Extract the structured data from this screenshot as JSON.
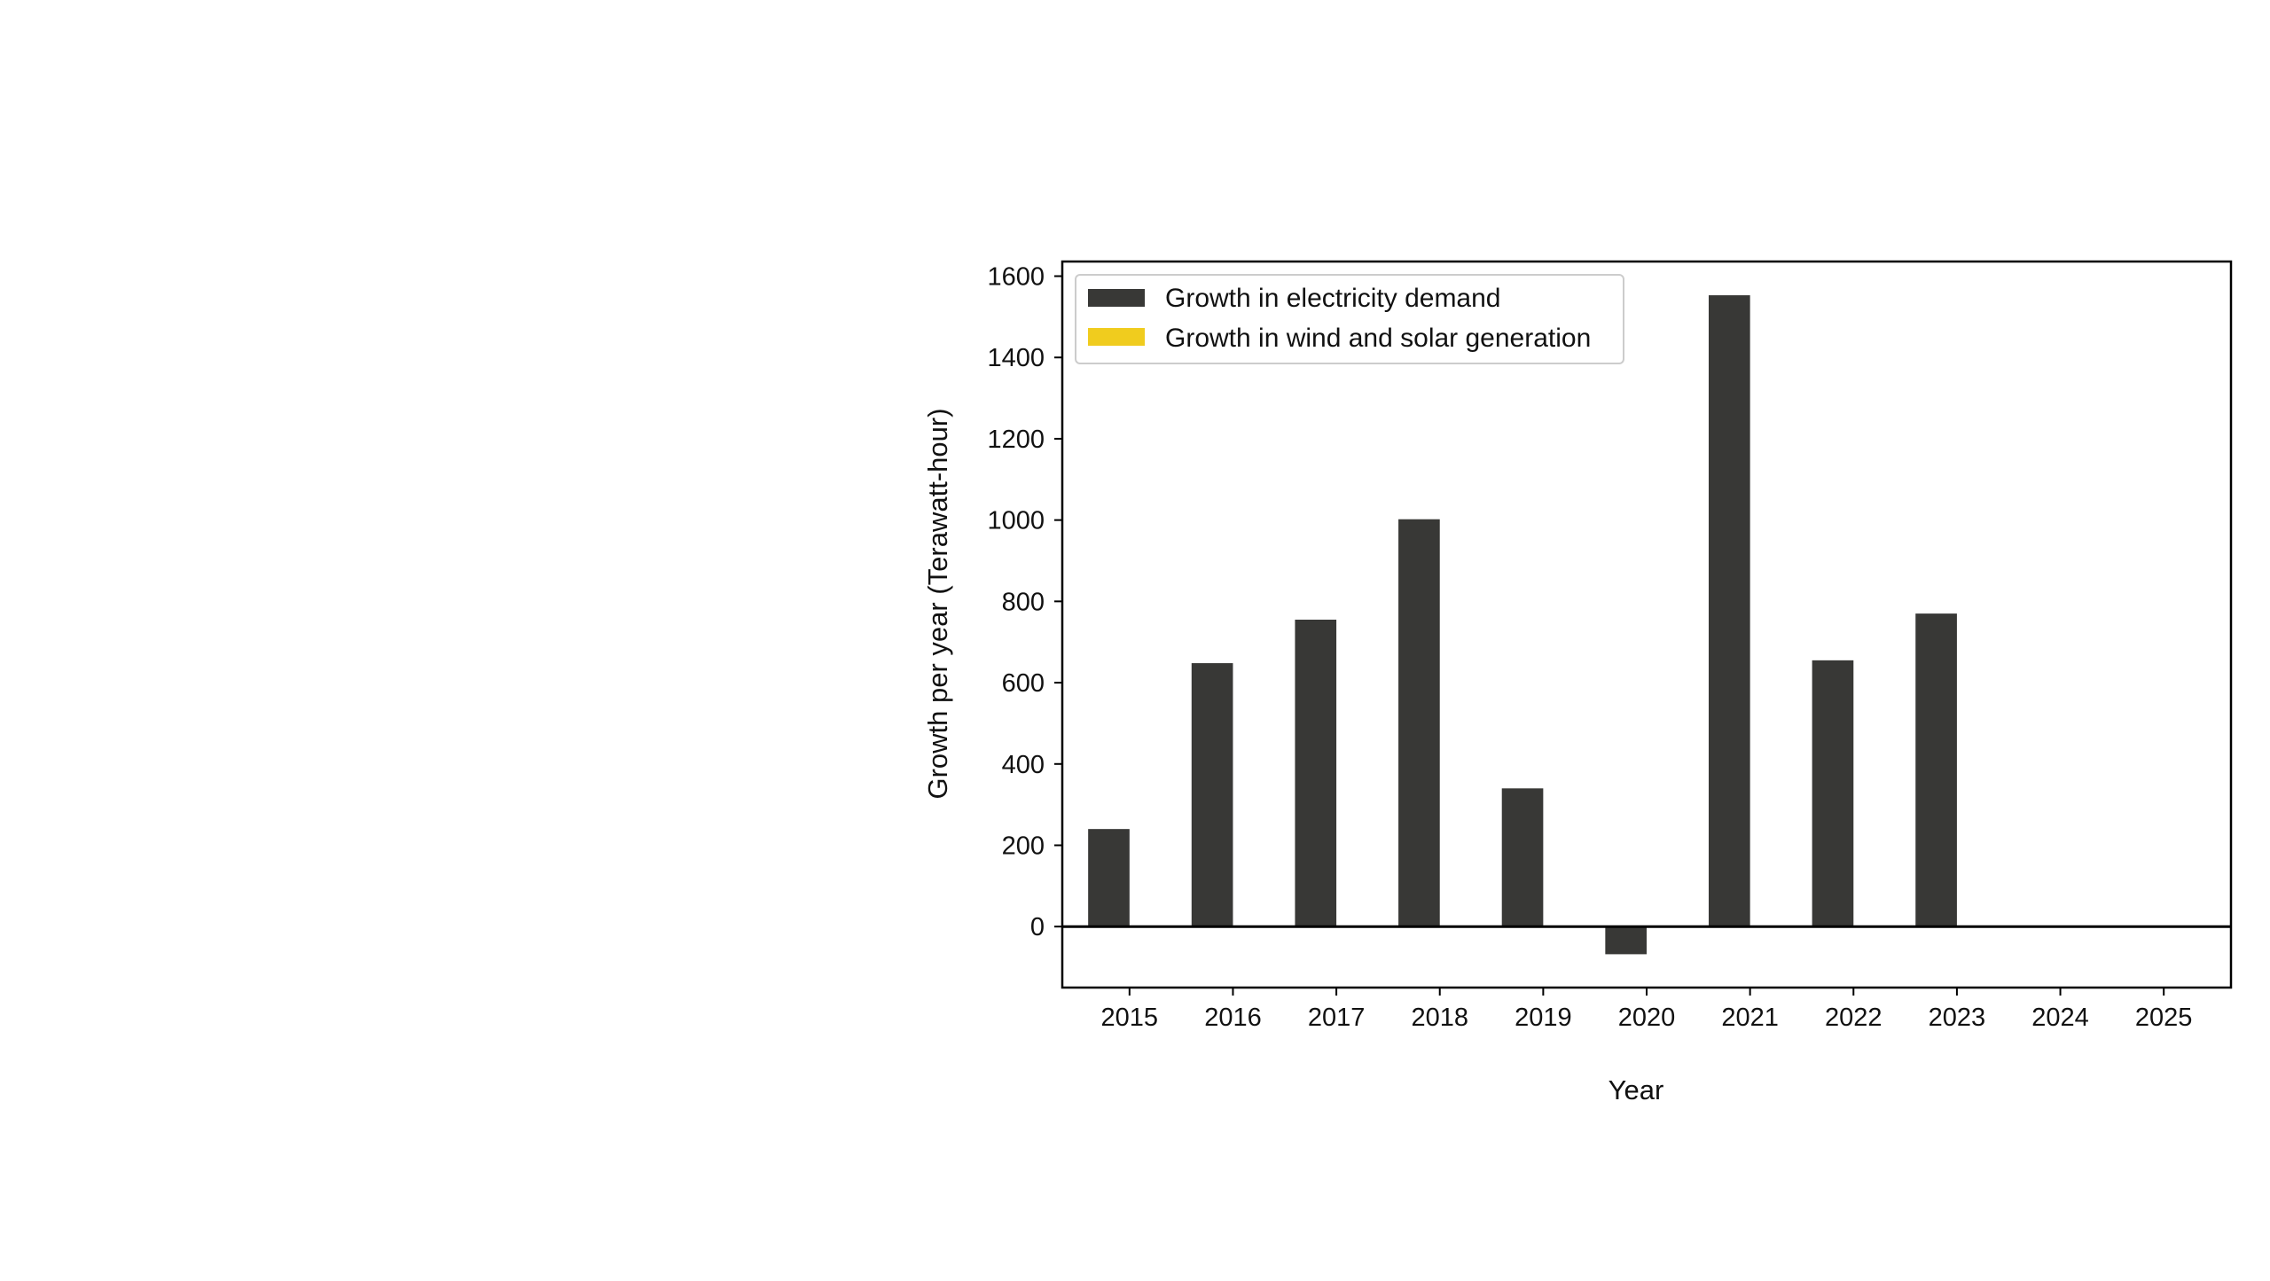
{
  "chart_data": {
    "type": "bar",
    "title": "",
    "xlabel": "Year",
    "ylabel": "Growth per year (Terawatt-hour)",
    "categories": [
      "2015",
      "2016",
      "2017",
      "2018",
      "2019",
      "2020",
      "2021",
      "2022",
      "2023",
      "2024",
      "2025"
    ],
    "series": [
      {
        "name": "Growth in electricity demand",
        "color": "#383836",
        "values": [
          240,
          648,
          755,
          1002,
          340,
          -68,
          1553,
          655,
          770,
          null,
          null
        ]
      },
      {
        "name": "Growth in wind and solar generation",
        "color": "#f0cc1e",
        "values": [
          null,
          null,
          null,
          null,
          null,
          null,
          null,
          null,
          null,
          null,
          null
        ]
      }
    ],
    "yticks": [
      "0",
      "200",
      "400",
      "600",
      "800",
      "1000",
      "1200",
      "1400",
      "1600"
    ],
    "ylim": [
      -150,
      1636
    ],
    "xlim": [
      2014.35,
      2025.65
    ],
    "grid": false,
    "legend_position": "top-left"
  }
}
